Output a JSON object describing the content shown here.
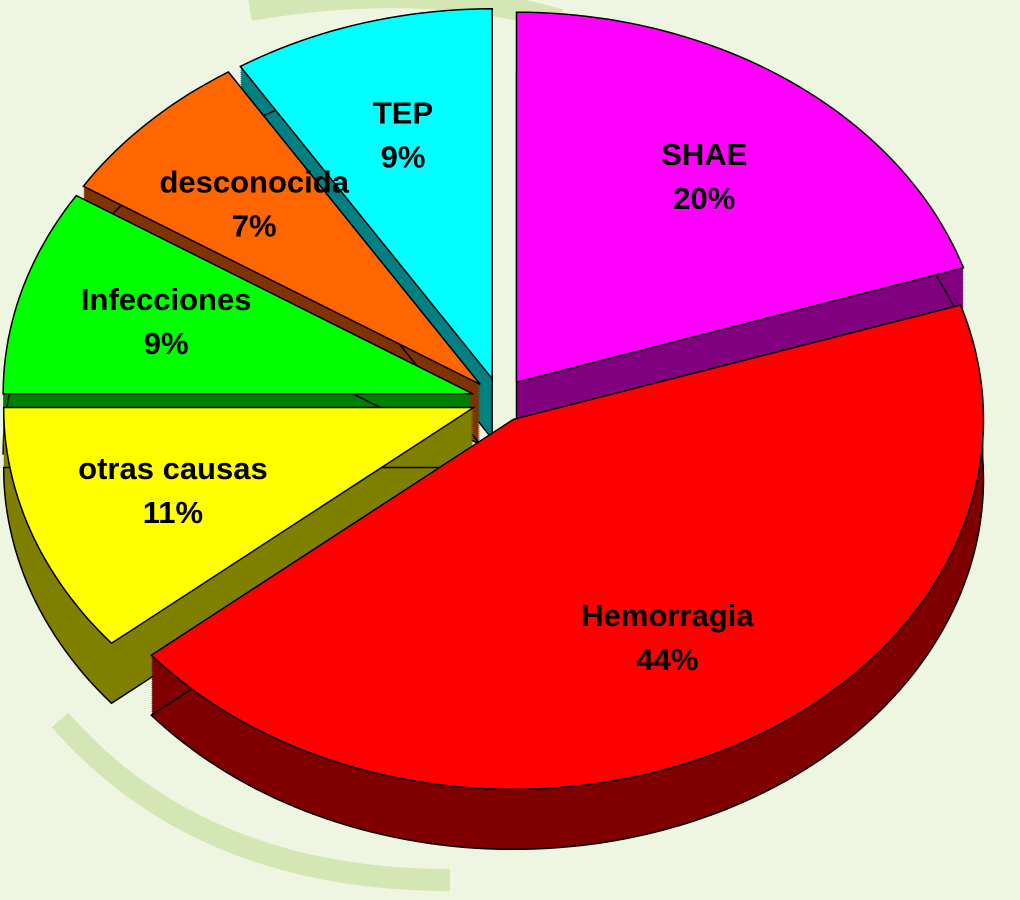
{
  "chart_data": {
    "type": "pie",
    "categories": [
      "SHAE",
      "Hemorragia",
      "otras causas",
      "Infecciones",
      "desconocida",
      "TEP"
    ],
    "values": [
      20,
      44,
      11,
      9,
      7,
      9
    ],
    "value_labels": [
      "20%",
      "44%",
      "11%",
      "9%",
      "7%",
      "9%"
    ],
    "colors": [
      "#ff00ff",
      "#ff0000",
      "#ffff00",
      "#00ff00",
      "#ff6600",
      "#00ffff"
    ],
    "exploded": true,
    "three_d": true
  }
}
